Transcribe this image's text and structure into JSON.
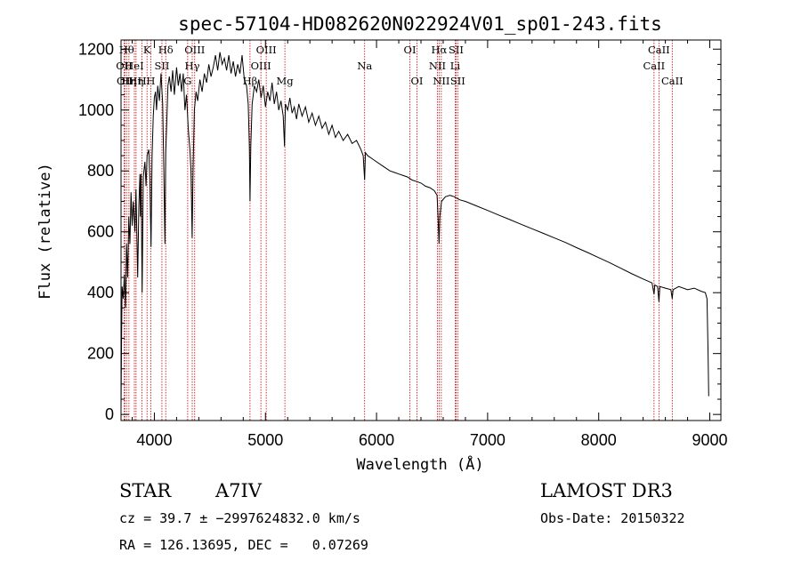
{
  "chart_data": {
    "type": "line",
    "title": "spec-57104-HD082620N022924V01_sp01-243.fits",
    "xlabel": "Wavelength (Å)",
    "ylabel": "Flux (relative)",
    "xlim": [
      3700,
      9100
    ],
    "ylim": [
      -20,
      1230
    ],
    "x_ticks": [
      4000,
      5000,
      6000,
      7000,
      8000,
      9000
    ],
    "y_ticks": [
      0,
      200,
      400,
      600,
      800,
      1000,
      1200
    ],
    "grid": false,
    "series": [
      {
        "name": "flux",
        "color": "#000000",
        "points": [
          [
            3700,
            20
          ],
          [
            3705,
            250
          ],
          [
            3710,
            420
          ],
          [
            3720,
            380
          ],
          [
            3730,
            460
          ],
          [
            3740,
            350
          ],
          [
            3750,
            560
          ],
          [
            3760,
            450
          ],
          [
            3770,
            650
          ],
          [
            3780,
            560
          ],
          [
            3790,
            730
          ],
          [
            3800,
            620
          ],
          [
            3810,
            700
          ],
          [
            3825,
            600
          ],
          [
            3835,
            740
          ],
          [
            3850,
            450
          ],
          [
            3860,
            680
          ],
          [
            3870,
            790
          ],
          [
            3875,
            650
          ],
          [
            3880,
            790
          ],
          [
            3890,
            400
          ],
          [
            3900,
            780
          ],
          [
            3915,
            830
          ],
          [
            3925,
            750
          ],
          [
            3935,
            850
          ],
          [
            3950,
            870
          ],
          [
            3960,
            760
          ],
          [
            3970,
            550
          ],
          [
            3980,
            850
          ],
          [
            3990,
            980
          ],
          [
            4000,
            1040
          ],
          [
            4010,
            1060
          ],
          [
            4020,
            1000
          ],
          [
            4030,
            1080
          ],
          [
            4045,
            1030
          ],
          [
            4060,
            1120
          ],
          [
            4075,
            1020
          ],
          [
            4085,
            800
          ],
          [
            4095,
            560
          ],
          [
            4102,
            860
          ],
          [
            4112,
            960
          ],
          [
            4122,
            1080
          ],
          [
            4135,
            1110
          ],
          [
            4150,
            1060
          ],
          [
            4165,
            1130
          ],
          [
            4180,
            1050
          ],
          [
            4200,
            1140
          ],
          [
            4215,
            1080
          ],
          [
            4230,
            1120
          ],
          [
            4245,
            1060
          ],
          [
            4260,
            1120
          ],
          [
            4275,
            1000
          ],
          [
            4290,
            1050
          ],
          [
            4305,
            940
          ],
          [
            4320,
            870
          ],
          [
            4330,
            800
          ],
          [
            4340,
            580
          ],
          [
            4348,
            800
          ],
          [
            4360,
            1000
          ],
          [
            4375,
            1060
          ],
          [
            4390,
            1030
          ],
          [
            4410,
            1100
          ],
          [
            4430,
            1060
          ],
          [
            4450,
            1120
          ],
          [
            4470,
            1090
          ],
          [
            4490,
            1150
          ],
          [
            4510,
            1110
          ],
          [
            4530,
            1140
          ],
          [
            4550,
            1180
          ],
          [
            4570,
            1130
          ],
          [
            4590,
            1190
          ],
          [
            4610,
            1150
          ],
          [
            4630,
            1170
          ],
          [
            4650,
            1130
          ],
          [
            4670,
            1180
          ],
          [
            4690,
            1120
          ],
          [
            4710,
            1160
          ],
          [
            4730,
            1110
          ],
          [
            4750,
            1150
          ],
          [
            4770,
            1120
          ],
          [
            4790,
            1180
          ],
          [
            4810,
            1100
          ],
          [
            4830,
            1080
          ],
          [
            4845,
            1020
          ],
          [
            4855,
            880
          ],
          [
            4861,
            700
          ],
          [
            4868,
            880
          ],
          [
            4880,
            1020
          ],
          [
            4900,
            1080
          ],
          [
            4920,
            1060
          ],
          [
            4940,
            1100
          ],
          [
            4960,
            1040
          ],
          [
            4980,
            1080
          ],
          [
            5000,
            1010
          ],
          [
            5020,
            1060
          ],
          [
            5040,
            1030
          ],
          [
            5060,
            1090
          ],
          [
            5080,
            1020
          ],
          [
            5100,
            1060
          ],
          [
            5120,
            1000
          ],
          [
            5140,
            1030
          ],
          [
            5160,
            980
          ],
          [
            5172,
            880
          ],
          [
            5180,
            1020
          ],
          [
            5200,
            1000
          ],
          [
            5220,
            1040
          ],
          [
            5240,
            990
          ],
          [
            5260,
            1010
          ],
          [
            5280,
            970
          ],
          [
            5300,
            1020
          ],
          [
            5330,
            980
          ],
          [
            5360,
            1010
          ],
          [
            5390,
            960
          ],
          [
            5420,
            990
          ],
          [
            5450,
            950
          ],
          [
            5480,
            980
          ],
          [
            5510,
            940
          ],
          [
            5540,
            960
          ],
          [
            5570,
            920
          ],
          [
            5600,
            950
          ],
          [
            5630,
            910
          ],
          [
            5660,
            930
          ],
          [
            5700,
            900
          ],
          [
            5740,
            920
          ],
          [
            5780,
            890
          ],
          [
            5820,
            900
          ],
          [
            5860,
            870
          ],
          [
            5880,
            850
          ],
          [
            5893,
            770
          ],
          [
            5900,
            860
          ],
          [
            5920,
            850
          ],
          [
            5960,
            840
          ],
          [
            6000,
            830
          ],
          [
            6040,
            820
          ],
          [
            6080,
            810
          ],
          [
            6120,
            800
          ],
          [
            6160,
            795
          ],
          [
            6200,
            790
          ],
          [
            6240,
            785
          ],
          [
            6280,
            780
          ],
          [
            6320,
            770
          ],
          [
            6360,
            765
          ],
          [
            6400,
            760
          ],
          [
            6440,
            750
          ],
          [
            6480,
            745
          ],
          [
            6520,
            735
          ],
          [
            6545,
            720
          ],
          [
            6555,
            640
          ],
          [
            6563,
            560
          ],
          [
            6570,
            650
          ],
          [
            6585,
            700
          ],
          [
            6620,
            715
          ],
          [
            6660,
            720
          ],
          [
            6700,
            715
          ],
          [
            6750,
            705
          ],
          [
            6800,
            700
          ],
          [
            6900,
            685
          ],
          [
            7000,
            670
          ],
          [
            7100,
            655
          ],
          [
            7200,
            640
          ],
          [
            7300,
            625
          ],
          [
            7400,
            610
          ],
          [
            7500,
            595
          ],
          [
            7600,
            580
          ],
          [
            7700,
            565
          ],
          [
            7800,
            548
          ],
          [
            7900,
            532
          ],
          [
            8000,
            515
          ],
          [
            8100,
            498
          ],
          [
            8200,
            480
          ],
          [
            8300,
            462
          ],
          [
            8400,
            445
          ],
          [
            8480,
            432
          ],
          [
            8498,
            395
          ],
          [
            8505,
            425
          ],
          [
            8530,
            420
          ],
          [
            8542,
            370
          ],
          [
            8550,
            420
          ],
          [
            8600,
            415
          ],
          [
            8650,
            410
          ],
          [
            8662,
            380
          ],
          [
            8670,
            410
          ],
          [
            8720,
            420
          ],
          [
            8800,
            410
          ],
          [
            8860,
            415
          ],
          [
            8920,
            405
          ],
          [
            8960,
            400
          ],
          [
            8975,
            380
          ],
          [
            8985,
            200
          ],
          [
            8990,
            60
          ]
        ]
      }
    ],
    "lines": [
      {
        "wavelength": 3728,
        "label": "OII",
        "row": 1
      },
      {
        "wavelength": 3734,
        "label": "OII",
        "row": 2
      },
      {
        "wavelength": 3750,
        "label": "Hθ",
        "row": 0
      },
      {
        "wavelength": 3771,
        "label": "Hη",
        "row": 2
      },
      {
        "wavelength": 3820,
        "label": "HeI",
        "row": 1
      },
      {
        "wavelength": 3835,
        "label": "Hη",
        "row": 2
      },
      {
        "wavelength": 3889,
        "label": "H",
        "row": 2
      },
      {
        "wavelength": 3934,
        "label": "K",
        "row": 0
      },
      {
        "wavelength": 3968,
        "label": "H",
        "row": 2
      },
      {
        "wavelength": 4068,
        "label": "SII",
        "row": 1
      },
      {
        "wavelength": 4102,
        "label": "Hδ",
        "row": 0
      },
      {
        "wavelength": 4300,
        "label": "G",
        "row": 2
      },
      {
        "wavelength": 4341,
        "label": "Hγ",
        "row": 1
      },
      {
        "wavelength": 4363,
        "label": "OIII",
        "row": 0
      },
      {
        "wavelength": 4861,
        "label": "Hβ",
        "row": 2
      },
      {
        "wavelength": 4959,
        "label": "OIII",
        "row": 1
      },
      {
        "wavelength": 5007,
        "label": "OIII",
        "row": 0
      },
      {
        "wavelength": 5175,
        "label": "Mg",
        "row": 2
      },
      {
        "wavelength": 5893,
        "label": "Na",
        "row": 1
      },
      {
        "wavelength": 6300,
        "label": "OI",
        "row": 0
      },
      {
        "wavelength": 6364,
        "label": "OI",
        "row": 2
      },
      {
        "wavelength": 6548,
        "label": "NII",
        "row": 1
      },
      {
        "wavelength": 6563,
        "label": "Hα",
        "row": 0
      },
      {
        "wavelength": 6583,
        "label": "NII",
        "row": 2
      },
      {
        "wavelength": 6708,
        "label": "Li",
        "row": 1
      },
      {
        "wavelength": 6716,
        "label": "SII",
        "row": 0
      },
      {
        "wavelength": 6731,
        "label": "SII",
        "row": 2
      },
      {
        "wavelength": 8498,
        "label": "CaII",
        "row": 1
      },
      {
        "wavelength": 8542,
        "label": "CaII",
        "row": 0
      },
      {
        "wavelength": 8662,
        "label": "CaII",
        "row": 2
      }
    ]
  },
  "info": {
    "object_class": "STAR",
    "subclass": "A7IV",
    "survey": "LAMOST DR3",
    "cz": "cz = 39.7 ± −2997624832.0 km/s",
    "obs_date": "Obs-Date: 20150322",
    "coords": "RA = 126.13695, DEC =   0.07269"
  },
  "colors": {
    "line_marker": "#cc0000",
    "spectrum": "#000000",
    "axes": "#000000"
  }
}
